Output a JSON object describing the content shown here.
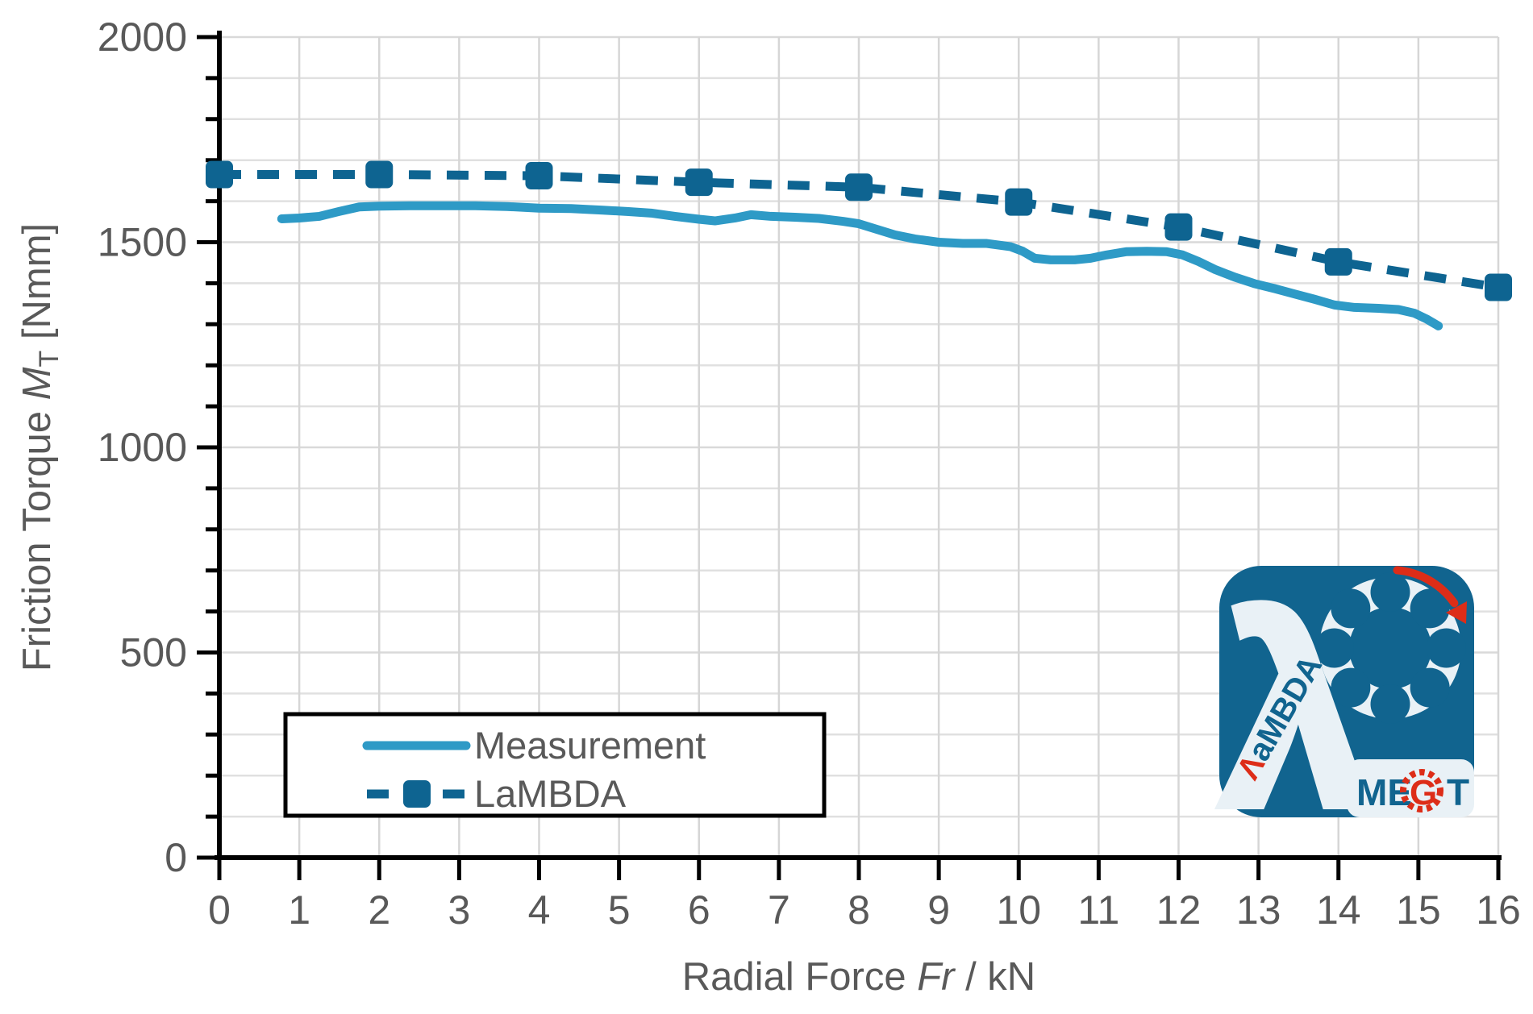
{
  "chart_data": {
    "type": "line",
    "title": "",
    "xlabel": {
      "prefix": "Radial Force ",
      "italic": "Fr",
      "suffix": " / kN"
    },
    "ylabel": {
      "prefix": "Friction Torque ",
      "italic": "M",
      "subscript": "T",
      "suffix": " [Nmm]"
    },
    "xlim": [
      0,
      16
    ],
    "ylim": [
      0,
      2000
    ],
    "x_ticks": [
      0,
      1,
      2,
      3,
      4,
      5,
      6,
      7,
      8,
      9,
      10,
      11,
      12,
      13,
      14,
      15,
      16
    ],
    "y_ticks": [
      0,
      500,
      1000,
      1500,
      2000
    ],
    "y_minor_step": 100,
    "grid": {
      "vertical": true,
      "horizontal": true,
      "v_color": "#d6d6d6",
      "h_color": "#e0e0e0"
    },
    "legend": {
      "position": "bottom-left",
      "entries": [
        "Measurement",
        "LaMBDA"
      ]
    },
    "series": [
      {
        "name": "Measurement",
        "style": "solid",
        "color": "#2e9ac6",
        "points": [
          [
            0.78,
            1557
          ],
          [
            1.0,
            1559
          ],
          [
            1.25,
            1563
          ],
          [
            1.5,
            1575
          ],
          [
            1.75,
            1586
          ],
          [
            2.0,
            1588
          ],
          [
            2.4,
            1589
          ],
          [
            2.8,
            1589
          ],
          [
            3.2,
            1589
          ],
          [
            3.6,
            1587
          ],
          [
            4.0,
            1583
          ],
          [
            4.4,
            1582
          ],
          [
            4.8,
            1578
          ],
          [
            5.1,
            1575
          ],
          [
            5.4,
            1571
          ],
          [
            5.7,
            1563
          ],
          [
            6.0,
            1556
          ],
          [
            6.2,
            1552
          ],
          [
            6.45,
            1559
          ],
          [
            6.65,
            1567
          ],
          [
            6.9,
            1563
          ],
          [
            7.2,
            1561
          ],
          [
            7.5,
            1558
          ],
          [
            7.8,
            1551
          ],
          [
            8.0,
            1545
          ],
          [
            8.2,
            1533
          ],
          [
            8.45,
            1518
          ],
          [
            8.7,
            1508
          ],
          [
            9.0,
            1500
          ],
          [
            9.3,
            1497
          ],
          [
            9.6,
            1497
          ],
          [
            9.9,
            1489
          ],
          [
            10.05,
            1478
          ],
          [
            10.2,
            1461
          ],
          [
            10.4,
            1457
          ],
          [
            10.7,
            1457
          ],
          [
            10.9,
            1461
          ],
          [
            11.1,
            1469
          ],
          [
            11.35,
            1477
          ],
          [
            11.6,
            1478
          ],
          [
            11.85,
            1477
          ],
          [
            12.05,
            1469
          ],
          [
            12.25,
            1453
          ],
          [
            12.45,
            1434
          ],
          [
            12.7,
            1415
          ],
          [
            12.95,
            1399
          ],
          [
            13.2,
            1387
          ],
          [
            13.45,
            1374
          ],
          [
            13.7,
            1361
          ],
          [
            13.95,
            1347
          ],
          [
            14.2,
            1341
          ],
          [
            14.5,
            1339
          ],
          [
            14.75,
            1336
          ],
          [
            14.95,
            1327
          ],
          [
            15.1,
            1313
          ],
          [
            15.25,
            1296
          ]
        ]
      },
      {
        "name": "LaMBDA",
        "style": "dashed-square-markers",
        "color": "#0e6491",
        "x": [
          0,
          2,
          4,
          6,
          8,
          10,
          12,
          14,
          16
        ],
        "values": [
          1665,
          1665,
          1662,
          1646,
          1634,
          1598,
          1537,
          1452,
          1390
        ]
      }
    ]
  },
  "logo": {
    "lambda_initial": "Λ",
    "lambda_rest": "aMBDA",
    "megt_me": "ME",
    "megt_g": "G",
    "megt_t": "T",
    "bg_color": "#11648f",
    "pale_color": "#e9f1f6",
    "red_color": "#dd2d18"
  }
}
